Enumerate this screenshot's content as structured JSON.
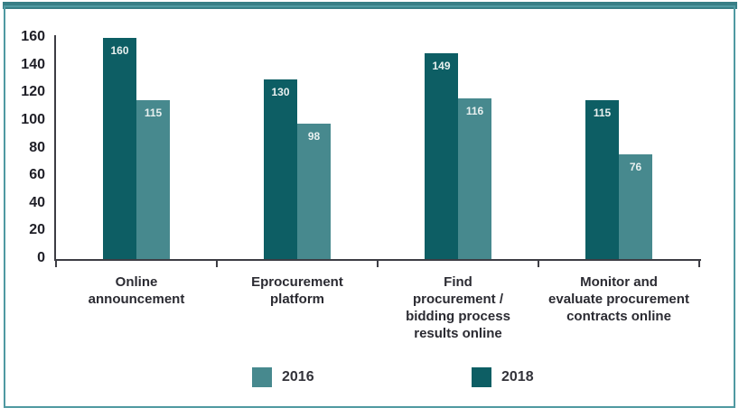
{
  "frame": {
    "accent_bar_color": "#387e86",
    "border_color": "#4f99a1",
    "background": "#ffffff"
  },
  "chart_data": {
    "type": "bar",
    "title": "",
    "xlabel": "",
    "ylabel": "",
    "categories": [
      "Online announcement",
      "Eprocurement platform",
      "Find procurement / bidding process results online",
      "Monitor and evaluate procurement contracts online"
    ],
    "category_lines": [
      [
        "Online",
        "announcement"
      ],
      [
        "Eprocurement",
        "platform"
      ],
      [
        "Find",
        "procurement /",
        "bidding process",
        "results online"
      ],
      [
        "Monitor and",
        "evaluate procurement",
        "contracts online"
      ]
    ],
    "series": [
      {
        "name": "2018",
        "color": "#0d5e64",
        "values": [
          160,
          130,
          149,
          115
        ]
      },
      {
        "name": "2016",
        "color": "#47898e",
        "values": [
          115,
          98,
          116,
          76
        ]
      }
    ],
    "legend": [
      {
        "label": "2016",
        "color": "#47898e"
      },
      {
        "label": "2018",
        "color": "#0d5e64"
      }
    ],
    "legend_position": "bottom",
    "y_ticks": [
      0,
      20,
      40,
      60,
      80,
      100,
      120,
      140,
      160
    ],
    "ylim": [
      0,
      160
    ],
    "grid": false,
    "value_labels": true,
    "value_label_color": "#e8f0ef",
    "axis_color": "#3d3d44",
    "text_color": "#2b2b32"
  }
}
